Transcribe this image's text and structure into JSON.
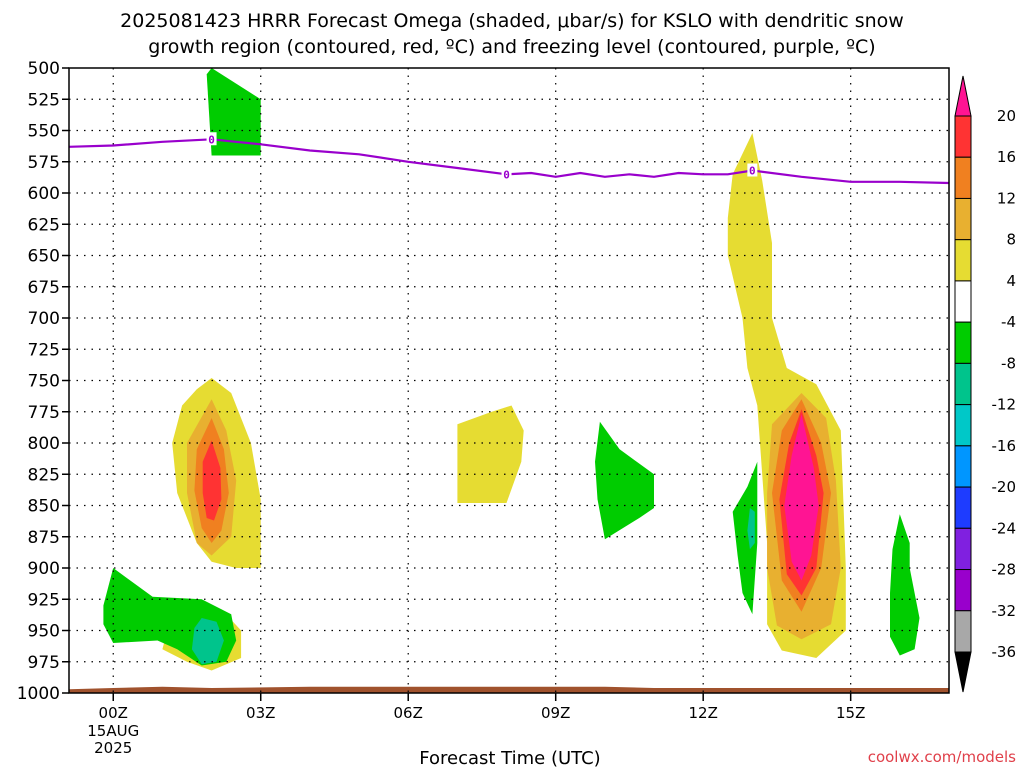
{
  "title_line1": "2025081423 HRRR Forecast Omega (shaded, μbar/s) for KSLO with dendritic snow",
  "title_line2": "growth region (contoured, red, ºC) and freezing level (contoured, purple, ºC)",
  "xlabel": "Forecast Time (UTC)",
  "credit": "coolwx.com/models",
  "chart_data": {
    "type": "heatmap",
    "xlabel": "Forecast Time (UTC)",
    "x_unit": "forecast hour from 00Z 15AUG 2025",
    "xlim": [
      -0.9,
      17.0
    ],
    "ylim": [
      1000,
      500
    ],
    "y_ticks": [
      500,
      525,
      550,
      575,
      600,
      625,
      650,
      675,
      700,
      725,
      750,
      775,
      800,
      825,
      850,
      875,
      900,
      925,
      950,
      975,
      1000
    ],
    "x_ticks": [
      {
        "hour": 0,
        "label": "00Z",
        "sub1": "15AUG",
        "sub2": "2025"
      },
      {
        "hour": 3,
        "label": "03Z",
        "sub1": "",
        "sub2": ""
      },
      {
        "hour": 6,
        "label": "06Z",
        "sub1": "",
        "sub2": ""
      },
      {
        "hour": 9,
        "label": "09Z",
        "sub1": "",
        "sub2": ""
      },
      {
        "hour": 12,
        "label": "12Z",
        "sub1": "",
        "sub2": ""
      },
      {
        "hour": 15,
        "label": "15Z",
        "sub1": "",
        "sub2": ""
      }
    ],
    "grid": true,
    "colorbar": {
      "labels": [
        "20",
        "16",
        "12",
        "8",
        "4",
        "-4",
        "-8",
        "-12",
        "-16",
        "-20",
        "-24",
        "-28",
        "-32",
        "-36"
      ],
      "bins": [
        {
          "color": "#ff1493"
        },
        {
          "color": "#ff3333"
        },
        {
          "color": "#f08020"
        },
        {
          "color": "#e8b030"
        },
        {
          "color": "#e6dc32"
        },
        {
          "color": "#ffffff"
        },
        {
          "color": "#00cc00"
        },
        {
          "color": "#00c48c"
        },
        {
          "color": "#00c8c8"
        },
        {
          "color": "#0096ff"
        },
        {
          "color": "#1e3cff"
        },
        {
          "color": "#8020e0"
        },
        {
          "color": "#9900cc"
        },
        {
          "color": "#a8a8a8"
        }
      ]
    },
    "shaded_regions": [
      {
        "name": "green-upper-h2",
        "color": "#00cc00",
        "points": [
          [
            1.9,
            505
          ],
          [
            2.0,
            500
          ],
          [
            3.0,
            525
          ],
          [
            3.0,
            570
          ],
          [
            2.0,
            570
          ]
        ]
      },
      {
        "name": "yellow-h2",
        "color": "#e6dc32",
        "points": [
          [
            2.0,
            748
          ],
          [
            2.4,
            760
          ],
          [
            2.8,
            800
          ],
          [
            3.0,
            845
          ],
          [
            3.0,
            900
          ],
          [
            2.5,
            900
          ],
          [
            2.0,
            895
          ],
          [
            1.7,
            880
          ],
          [
            1.3,
            840
          ],
          [
            1.2,
            800
          ],
          [
            1.4,
            770
          ],
          [
            1.7,
            757
          ]
        ]
      },
      {
        "name": "orange-h2",
        "color": "#e8b030",
        "points": [
          [
            2.0,
            765
          ],
          [
            2.3,
            790
          ],
          [
            2.5,
            830
          ],
          [
            2.4,
            875
          ],
          [
            2.0,
            890
          ],
          [
            1.7,
            880
          ],
          [
            1.5,
            840
          ],
          [
            1.5,
            800
          ]
        ]
      },
      {
        "name": "darkorange-h2",
        "color": "#f08020",
        "points": [
          [
            2.0,
            780
          ],
          [
            2.25,
            805
          ],
          [
            2.35,
            840
          ],
          [
            2.2,
            870
          ],
          [
            2.0,
            880
          ],
          [
            1.8,
            868
          ],
          [
            1.65,
            838
          ],
          [
            1.7,
            805
          ]
        ]
      },
      {
        "name": "red-h2",
        "color": "#ff3333",
        "points": [
          [
            2.0,
            798
          ],
          [
            2.18,
            820
          ],
          [
            2.2,
            845
          ],
          [
            2.05,
            862
          ],
          [
            1.9,
            860
          ],
          [
            1.82,
            840
          ],
          [
            1.82,
            815
          ]
        ]
      },
      {
        "name": "yellow-h1-low",
        "color": "#e6dc32",
        "points": [
          [
            1.5,
            925
          ],
          [
            2.2,
            933
          ],
          [
            2.6,
            950
          ],
          [
            2.6,
            972
          ],
          [
            2.0,
            982
          ],
          [
            1.5,
            975
          ],
          [
            1.0,
            965
          ],
          [
            1.2,
            935
          ]
        ]
      },
      {
        "name": "green-h0-low",
        "color": "#00cc00",
        "points": [
          [
            0.0,
            900
          ],
          [
            0.8,
            923
          ],
          [
            1.8,
            925
          ],
          [
            2.4,
            937
          ],
          [
            2.5,
            958
          ],
          [
            2.3,
            975
          ],
          [
            1.8,
            978
          ],
          [
            1.3,
            965
          ],
          [
            0.9,
            958
          ],
          [
            0.0,
            960
          ],
          [
            -0.2,
            945
          ],
          [
            -0.2,
            930
          ]
        ]
      },
      {
        "name": "teal-h2-low",
        "color": "#00c48c",
        "points": [
          [
            1.8,
            940
          ],
          [
            2.1,
            943
          ],
          [
            2.25,
            958
          ],
          [
            2.1,
            975
          ],
          [
            1.8,
            977
          ],
          [
            1.6,
            965
          ],
          [
            1.65,
            948
          ]
        ]
      },
      {
        "name": "yellow-h7",
        "color": "#e6dc32",
        "points": [
          [
            7.0,
            785
          ],
          [
            7.7,
            775
          ],
          [
            8.1,
            770
          ],
          [
            8.35,
            790
          ],
          [
            8.3,
            815
          ],
          [
            8.0,
            848
          ],
          [
            7.0,
            848
          ]
        ]
      },
      {
        "name": "green-h10",
        "color": "#00cc00",
        "points": [
          [
            9.9,
            783
          ],
          [
            10.3,
            805
          ],
          [
            11.0,
            825
          ],
          [
            11.0,
            852
          ],
          [
            10.7,
            860
          ],
          [
            10.0,
            877
          ],
          [
            9.85,
            845
          ],
          [
            9.8,
            815
          ]
        ]
      },
      {
        "name": "yellow-h13",
        "color": "#e6dc32",
        "points": [
          [
            13.0,
            552
          ],
          [
            13.2,
            590
          ],
          [
            13.4,
            640
          ],
          [
            13.4,
            700
          ],
          [
            13.7,
            740
          ],
          [
            14.3,
            753
          ],
          [
            14.8,
            790
          ],
          [
            14.9,
            900
          ],
          [
            14.9,
            950
          ],
          [
            14.3,
            972
          ],
          [
            13.6,
            966
          ],
          [
            13.3,
            945
          ],
          [
            13.3,
            880
          ],
          [
            13.1,
            770
          ],
          [
            12.9,
            740
          ],
          [
            12.8,
            700
          ],
          [
            12.5,
            650
          ],
          [
            12.5,
            620
          ],
          [
            12.6,
            585
          ]
        ]
      },
      {
        "name": "orange-h14",
        "color": "#e8b030",
        "points": [
          [
            14.0,
            760
          ],
          [
            14.5,
            780
          ],
          [
            14.7,
            830
          ],
          [
            14.8,
            900
          ],
          [
            14.6,
            945
          ],
          [
            14.0,
            957
          ],
          [
            13.5,
            946
          ],
          [
            13.3,
            900
          ],
          [
            13.3,
            840
          ],
          [
            13.4,
            785
          ]
        ]
      },
      {
        "name": "darkorange-h14",
        "color": "#f08020",
        "points": [
          [
            14.0,
            765
          ],
          [
            14.4,
            800
          ],
          [
            14.6,
            840
          ],
          [
            14.4,
            900
          ],
          [
            14.0,
            935
          ],
          [
            13.6,
            910
          ],
          [
            13.4,
            840
          ],
          [
            13.6,
            790
          ]
        ]
      },
      {
        "name": "red-h14",
        "color": "#ff3333",
        "points": [
          [
            14.0,
            773
          ],
          [
            14.3,
            810
          ],
          [
            14.45,
            840
          ],
          [
            14.3,
            900
          ],
          [
            14.0,
            922
          ],
          [
            13.7,
            905
          ],
          [
            13.55,
            845
          ],
          [
            13.75,
            800
          ]
        ]
      },
      {
        "name": "magenta-h14",
        "color": "#ff1493",
        "points": [
          [
            14.0,
            777
          ],
          [
            14.25,
            820
          ],
          [
            14.35,
            850
          ],
          [
            14.2,
            890
          ],
          [
            14.0,
            910
          ],
          [
            13.8,
            895
          ],
          [
            13.65,
            850
          ],
          [
            13.8,
            810
          ]
        ]
      },
      {
        "name": "green-h13-low",
        "color": "#00cc00",
        "points": [
          [
            12.9,
            835
          ],
          [
            13.1,
            815
          ],
          [
            13.1,
            880
          ],
          [
            13.0,
            937
          ],
          [
            12.8,
            920
          ],
          [
            12.7,
            890
          ],
          [
            12.6,
            855
          ]
        ]
      },
      {
        "name": "teal-h13-low",
        "color": "#00c48c",
        "points": [
          [
            12.95,
            852
          ],
          [
            13.05,
            855
          ],
          [
            13.05,
            880
          ],
          [
            12.95,
            885
          ],
          [
            12.9,
            870
          ]
        ]
      },
      {
        "name": "green-h16-low",
        "color": "#00cc00",
        "points": [
          [
            16.0,
            857
          ],
          [
            16.2,
            880
          ],
          [
            16.2,
            900
          ],
          [
            16.4,
            940
          ],
          [
            16.3,
            965
          ],
          [
            16.0,
            970
          ],
          [
            15.8,
            955
          ],
          [
            15.8,
            920
          ],
          [
            15.85,
            885
          ]
        ]
      }
    ],
    "freezing_level": {
      "points": [
        [
          -0.9,
          563
        ],
        [
          0.0,
          562
        ],
        [
          1.0,
          559
        ],
        [
          2.0,
          557
        ],
        [
          3.0,
          561
        ],
        [
          4.0,
          566
        ],
        [
          5.0,
          569
        ],
        [
          6.0,
          575
        ],
        [
          7.0,
          580
        ],
        [
          8.0,
          585
        ],
        [
          8.5,
          584
        ],
        [
          9.0,
          587
        ],
        [
          9.5,
          584
        ],
        [
          10.0,
          587
        ],
        [
          10.5,
          585
        ],
        [
          11.0,
          587
        ],
        [
          11.5,
          584
        ],
        [
          12.0,
          585
        ],
        [
          12.5,
          585
        ],
        [
          13.0,
          582
        ],
        [
          14.0,
          587
        ],
        [
          15.0,
          591
        ],
        [
          16.0,
          591
        ],
        [
          17.0,
          592
        ]
      ],
      "labels": [
        {
          "hour": 2.0,
          "p": 557,
          "text": "0"
        },
        {
          "hour": 8.0,
          "p": 585,
          "text": "0"
        },
        {
          "hour": 13.0,
          "p": 582,
          "text": "0"
        }
      ]
    },
    "terrain": [
      [
        -0.9,
        997
      ],
      [
        0.0,
        996
      ],
      [
        1.0,
        995
      ],
      [
        2.0,
        996
      ],
      [
        4.0,
        995
      ],
      [
        6.0,
        995
      ],
      [
        8.0,
        995
      ],
      [
        10.0,
        995
      ],
      [
        11.0,
        996
      ],
      [
        14.0,
        996
      ],
      [
        17.0,
        996
      ]
    ]
  }
}
